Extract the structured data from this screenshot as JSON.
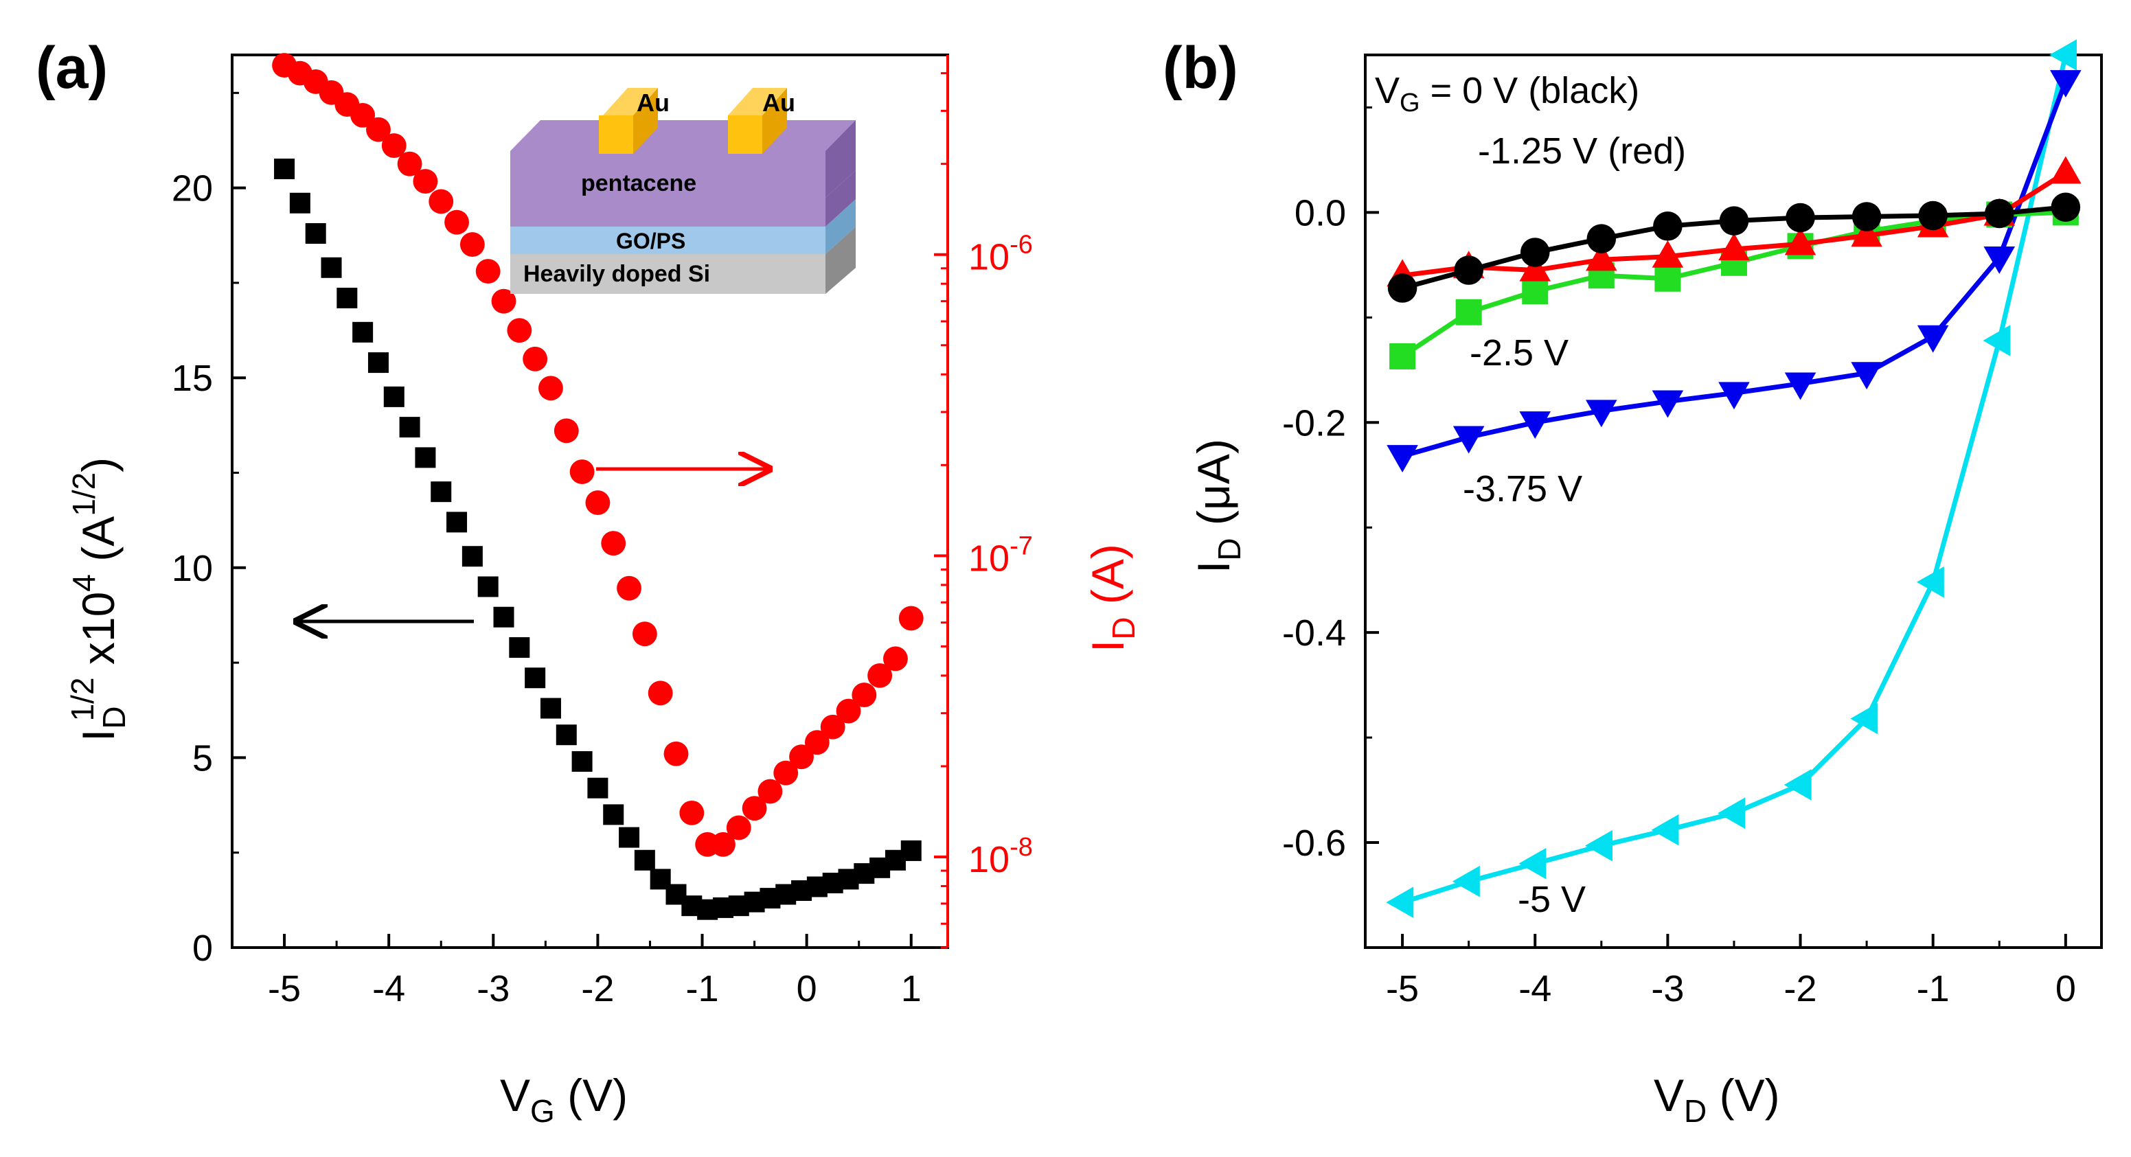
{
  "chart_data": [
    {
      "panel": "(a)",
      "type": "scatter",
      "xlabel": {
        "main": "V",
        "sub": "G",
        "unit": " (V)"
      },
      "ylabel_left": {
        "main": "I",
        "sub": "D",
        "sup": "1/2",
        "mult": " x10",
        "mult_sup": "4",
        "unit": " (A",
        "unit_sup": "1/2",
        "close": ")"
      },
      "ylabel_right": {
        "main": "I",
        "sub": "D",
        "unit": " (A)"
      },
      "xlim": [
        -5.5,
        1.35
      ],
      "ylim_left": [
        0,
        23.5
      ],
      "ylim_right_log": [
        5e-09,
        4.6e-06
      ],
      "x_ticks": [
        -5,
        -4,
        -3,
        -2,
        -1,
        0,
        1
      ],
      "x_tick_labels": [
        "-5",
        "-4",
        "-3",
        "-2",
        "-1",
        "0",
        "1"
      ],
      "y_ticks_left": [
        0,
        5,
        10,
        15,
        20
      ],
      "y_tick_labels_left": [
        "0",
        "5",
        "10",
        "15",
        "20"
      ],
      "y_ticks_right": [
        {
          "base": "10",
          "exp": "-8",
          "value": 1e-08
        },
        {
          "base": "10",
          "exp": "-7",
          "value": 1e-07
        },
        {
          "base": "10",
          "exp": "-6",
          "value": 1e-06
        }
      ],
      "series": [
        {
          "name": "sqrt(I_D) x10^4 (left axis)",
          "color": "#000000",
          "marker": "square",
          "x": [
            -5.0,
            -4.85,
            -4.7,
            -4.55,
            -4.4,
            -4.25,
            -4.1,
            -3.95,
            -3.8,
            -3.65,
            -3.5,
            -3.35,
            -3.2,
            -3.05,
            -2.9,
            -2.75,
            -2.6,
            -2.45,
            -2.3,
            -2.15,
            -2.0,
            -1.85,
            -1.7,
            -1.55,
            -1.4,
            -1.25,
            -1.1,
            -0.95,
            -0.8,
            -0.65,
            -0.5,
            -0.35,
            -0.2,
            -0.05,
            0.1,
            0.25,
            0.4,
            0.55,
            0.7,
            0.85,
            1.0
          ],
          "y": [
            20.5,
            19.6,
            18.8,
            17.9,
            17.1,
            16.2,
            15.4,
            14.5,
            13.7,
            12.9,
            12.0,
            11.2,
            10.3,
            9.5,
            8.7,
            7.9,
            7.1,
            6.3,
            5.6,
            4.9,
            4.2,
            3.5,
            2.9,
            2.3,
            1.8,
            1.4,
            1.1,
            1.0,
            1.05,
            1.1,
            1.2,
            1.3,
            1.4,
            1.5,
            1.6,
            1.7,
            1.8,
            1.95,
            2.1,
            2.3,
            2.55
          ]
        },
        {
          "name": "I_D (right axis, log)",
          "color": "#ff0000",
          "marker": "circle",
          "x": [
            -5.0,
            -4.85,
            -4.7,
            -4.55,
            -4.4,
            -4.25,
            -4.1,
            -3.95,
            -3.8,
            -3.65,
            -3.5,
            -3.35,
            -3.2,
            -3.05,
            -2.9,
            -2.75,
            -2.6,
            -2.45,
            -2.3,
            -2.15,
            -2.0,
            -1.85,
            -1.7,
            -1.55,
            -1.4,
            -1.25,
            -1.1,
            -0.95,
            -0.8,
            -0.65,
            -0.5,
            -0.35,
            -0.2,
            -0.05,
            0.1,
            0.25,
            0.4,
            0.55,
            0.7,
            0.85,
            1.0
          ],
          "y": [
            4.25e-06,
            4e-06,
            3.75e-06,
            3.45e-06,
            3.15e-06,
            2.9e-06,
            2.6e-06,
            2.3e-06,
            2e-06,
            1.75e-06,
            1.5e-06,
            1.28e-06,
            1.08e-06,
            8.8e-07,
            7e-07,
            5.6e-07,
            4.5e-07,
            3.6e-07,
            2.6e-07,
            1.9e-07,
            1.5e-07,
            1.1e-07,
            7.8e-08,
            5.5e-08,
            3.5e-08,
            2.2e-08,
            1.4e-08,
            1.1e-08,
            1.1e-08,
            1.25e-08,
            1.45e-08,
            1.65e-08,
            1.9e-08,
            2.15e-08,
            2.4e-08,
            2.7e-08,
            3.05e-08,
            3.45e-08,
            4e-08,
            4.55e-08,
            6.2e-08
          ]
        }
      ],
      "annotations": {
        "left_arrow": "points to left axis (black)",
        "right_arrow": "points to right axis (red)"
      },
      "inset": {
        "layers": [
          "pentacene",
          "GO/PS",
          "Heavily doped Si"
        ],
        "electrodes": [
          "Au",
          "Au"
        ],
        "colors": {
          "pentacene": "#a98bc9",
          "go_ps": "#9fc8ea",
          "si": "#c8c8c8",
          "gold": "#ffc20e"
        }
      }
    },
    {
      "panel": "(b)",
      "type": "line",
      "xlabel": {
        "main": "V",
        "sub": "D",
        "unit": " (V)"
      },
      "ylabel": {
        "main": "I",
        "sub": "D",
        "unit": " (μA)"
      },
      "xlim": [
        -5.28,
        0.27
      ],
      "ylim": [
        -0.7,
        0.15
      ],
      "x_ticks": [
        -5,
        -4,
        -3,
        -2,
        -1,
        0
      ],
      "x_tick_labels": [
        "-5",
        "-4",
        "-3",
        "-2",
        "-1",
        "0"
      ],
      "y_ticks": [
        0.0,
        -0.2,
        -0.4,
        -0.6
      ],
      "y_tick_labels": [
        "0.0",
        "-0.2",
        "-0.4",
        "-0.6"
      ],
      "x": [
        -5.0,
        -4.5,
        -4.0,
        -3.5,
        -3.0,
        -2.5,
        -2.0,
        -1.5,
        -1.0,
        -0.5,
        0.0
      ],
      "series": [
        {
          "name": "0 V",
          "color": "#000000",
          "marker": "circle",
          "values": [
            -0.072,
            -0.055,
            -0.038,
            -0.025,
            -0.013,
            -0.008,
            -0.005,
            -0.004,
            -0.003,
            -0.001,
            0.005
          ]
        },
        {
          "name": "-1.25 V",
          "color": "#ff0000",
          "marker": "triangle-up",
          "values": [
            -0.06,
            -0.052,
            -0.055,
            -0.045,
            -0.042,
            -0.035,
            -0.03,
            -0.022,
            -0.013,
            -0.002,
            0.038
          ]
        },
        {
          "name": "-2.5 V",
          "color": "#22dd22",
          "marker": "square",
          "values": [
            -0.137,
            -0.095,
            -0.075,
            -0.06,
            -0.063,
            -0.048,
            -0.032,
            -0.018,
            -0.008,
            -0.002,
            0.0
          ]
        },
        {
          "name": "-3.75 V",
          "color": "#0000ee",
          "marker": "triangle-down",
          "values": [
            -0.232,
            -0.214,
            -0.2,
            -0.189,
            -0.18,
            -0.172,
            -0.163,
            -0.153,
            -0.118,
            -0.043,
            0.125
          ]
        },
        {
          "name": "-5 V",
          "color": "#00e0f0",
          "marker": "triangle-left",
          "values": [
            -0.657,
            -0.637,
            -0.62,
            -0.603,
            -0.588,
            -0.572,
            -0.545,
            -0.482,
            -0.352,
            -0.122,
            0.15
          ]
        }
      ],
      "legend_text": {
        "vg_sub": "G",
        "line1_rest": " = 0 V (black)",
        "line2": "-1.25 V (red)",
        "label_2_5": "-2.5 V",
        "label_3_75": "-3.75 V",
        "label_5": "-5 V"
      }
    }
  ],
  "panels": {
    "a_label": "(a)",
    "b_label": "(b)"
  }
}
